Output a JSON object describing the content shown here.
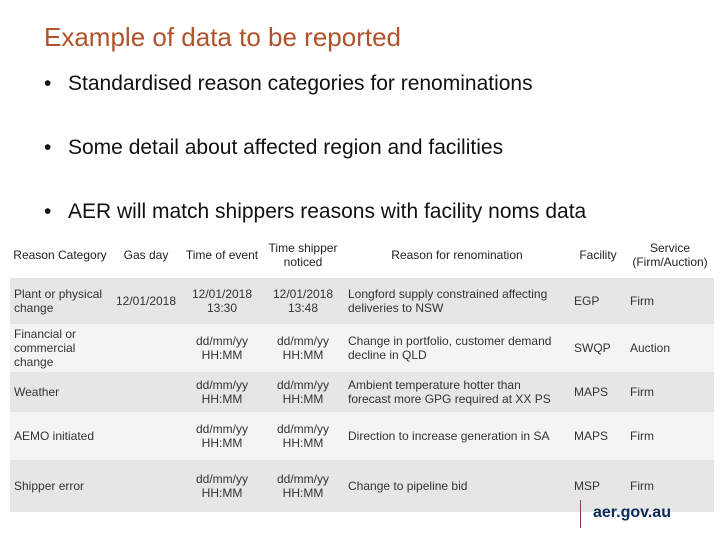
{
  "title": "Example of data to be reported",
  "bullets": [
    "Standardised reason categories for renominations",
    "Some detail about affected region and facilities",
    "AER will match shippers reasons with facility noms data"
  ],
  "table": {
    "headers": {
      "reason_category": "Reason Category",
      "gas_day": "Gas day",
      "time_of_event": "Time of event",
      "time_shipper_noticed": "Time shipper noticed",
      "reason_for_renomination": "Reason for renomination",
      "facility": "Facility",
      "service": "Service (Firm/Auction)"
    },
    "rows": [
      {
        "category": "Plant or physical change",
        "gas_day": "12/01/2018",
        "time_event": "12/01/2018 13:30",
        "time_noticed": "12/01/2018 13:48",
        "reason": "Longford supply constrained affecting deliveries to NSW",
        "facility": "EGP",
        "service": "Firm"
      },
      {
        "category": "Financial or commercial change",
        "gas_day": "",
        "time_event": "dd/mm/yy HH:MM",
        "time_noticed": "dd/mm/yy HH:MM",
        "reason": "Change in portfolio, customer demand decline in QLD",
        "facility": "SWQP",
        "service": "Auction"
      },
      {
        "category": "Weather",
        "gas_day": "",
        "time_event": "dd/mm/yy HH:MM",
        "time_noticed": "dd/mm/yy HH:MM",
        "reason": "Ambient temperature hotter than forecast more GPG required at XX PS",
        "facility": "MAPS",
        "service": "Firm"
      },
      {
        "category": "AEMO initiated",
        "gas_day": "",
        "time_event": "dd/mm/yy HH:MM",
        "time_noticed": "dd/mm/yy HH:MM",
        "reason": "Direction to increase generation in SA",
        "facility": "MAPS",
        "service": "Firm"
      },
      {
        "category": "Shipper error",
        "gas_day": "",
        "time_event": "dd/mm/yy HH:MM",
        "time_noticed": "dd/mm/yy HH:MM",
        "reason": "Change to pipeline bid",
        "facility": "MSP",
        "service": "Firm"
      }
    ]
  },
  "footer": "aer.gov.au"
}
